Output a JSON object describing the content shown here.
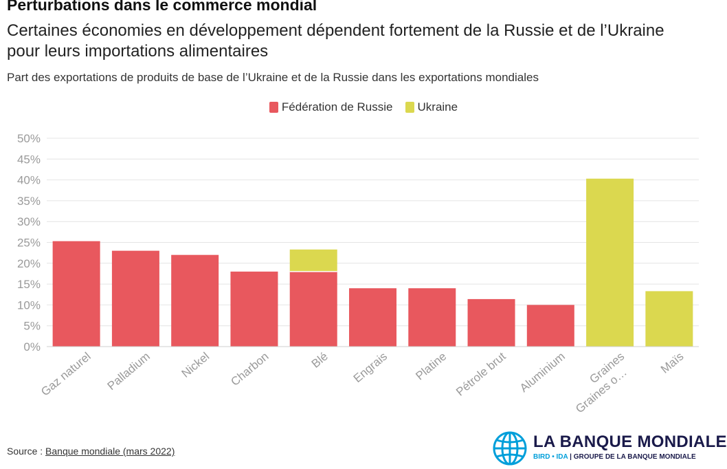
{
  "header": {
    "title": "Perturbations dans le commerce mondial",
    "subtitle": "Certaines économies en développement dépendent fortement de la Russie et de l’Ukraine pour leurs importations alimentaires",
    "description": "Part des exportations de produits de base de l’Ukraine et de la Russie dans les exportations mondiales"
  },
  "legend": {
    "items": [
      {
        "label": "Fédération de Russie",
        "color": "#e8585e"
      },
      {
        "label": "Ukraine",
        "color": "#dbd84f"
      }
    ]
  },
  "chart_data": {
    "type": "bar",
    "stacked": true,
    "categories": [
      "Gaz naturel",
      "Palladium",
      "Nickel",
      "Charbon",
      "Blé",
      "Engrais",
      "Platine",
      "Pétrole brut",
      "Aluminium",
      "Graines\nGraines o…",
      "Maïs"
    ],
    "series": [
      {
        "name": "Fédération de Russie",
        "color": "#e8585e",
        "values": [
          25.3,
          23.0,
          22.0,
          18.0,
          18.0,
          14.0,
          14.0,
          11.4,
          10.0,
          0,
          0
        ]
      },
      {
        "name": "Ukraine",
        "color": "#dbd84f",
        "values": [
          0,
          0,
          0,
          0,
          5.3,
          0,
          0,
          0,
          0,
          40.3,
          13.3
        ]
      }
    ],
    "yticks": [
      "0%",
      "5%",
      "10%",
      "15%",
      "20%",
      "25%",
      "30%",
      "35%",
      "40%",
      "45%",
      "50%"
    ],
    "ylim": [
      0,
      50
    ],
    "grid": true,
    "legend_position": "top-center"
  },
  "footer": {
    "source_prefix": "Source : ",
    "source_link": "Banque mondiale (mars 2022)",
    "logo_name": "LA BANQUE MONDIALE",
    "logo_tag_bird": "BIRD • IDA",
    "logo_tag_rest": " | GROUPE DE LA BANQUE MONDIALE"
  }
}
